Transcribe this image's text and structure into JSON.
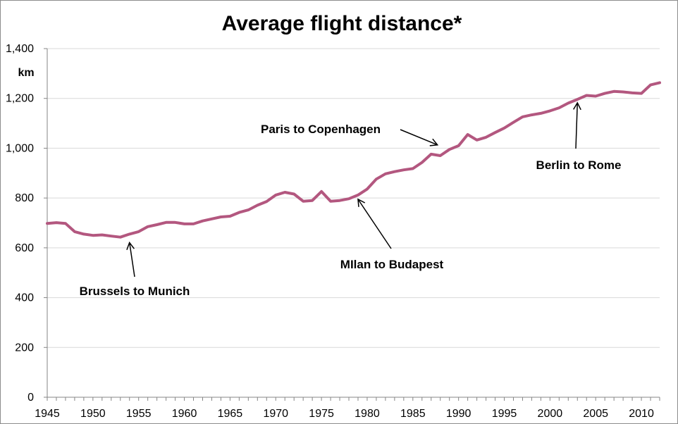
{
  "chart_data": {
    "type": "line",
    "title": "Average flight distance*",
    "ylabel": "km",
    "xlabel": "",
    "ylim": [
      0,
      1400
    ],
    "xlim": [
      1945,
      2012
    ],
    "grid": true,
    "legend": "none",
    "yticks": [
      0,
      200,
      400,
      600,
      800,
      1000,
      1200,
      1400
    ],
    "ytick_labels": [
      "0",
      "200",
      "400",
      "600",
      "800",
      "1,000",
      "1,200",
      "1,400"
    ],
    "xtick_labels": [
      "1945",
      "1950",
      "1955",
      "1960",
      "1965",
      "1970",
      "1975",
      "1980",
      "1985",
      "1990",
      "1995",
      "2000",
      "2005",
      "2010"
    ],
    "line_color": "#b3577f",
    "series": [
      {
        "x": [
          1945,
          1946,
          1947,
          1948,
          1949,
          1950,
          1951,
          1952,
          1953,
          1954,
          1955,
          1956,
          1957,
          1958,
          1959,
          1960,
          1961,
          1962,
          1963,
          1964,
          1965,
          1966,
          1967,
          1968,
          1969,
          1970,
          1971,
          1972,
          1973,
          1974,
          1975,
          1976,
          1977,
          1978,
          1979,
          1980,
          1981,
          1982,
          1983,
          1984,
          1985,
          1986,
          1987,
          1988,
          1989,
          1990,
          1991,
          1992,
          1993,
          1994,
          1995,
          1996,
          1997,
          1998,
          1999,
          2000,
          2001,
          2002,
          2003,
          2004,
          2005,
          2006,
          2007,
          2008,
          2009,
          2010,
          2011,
          2012
        ],
        "values": [
          698,
          701,
          698,
          665,
          655,
          650,
          652,
          647,
          643,
          655,
          665,
          685,
          693,
          702,
          702,
          696,
          696,
          708,
          716,
          724,
          727,
          742,
          752,
          771,
          786,
          812,
          823,
          816,
          787,
          790,
          826,
          787,
          790,
          797,
          812,
          836,
          876,
          897,
          906,
          913,
          918,
          943,
          976,
          970,
          995,
          1010,
          1055,
          1033,
          1044,
          1063,
          1081,
          1104,
          1126,
          1134,
          1140,
          1150,
          1162,
          1181,
          1196,
          1212,
          1209,
          1220,
          1228,
          1226,
          1222,
          1220,
          1254,
          1263
        ]
      }
    ],
    "annotations": [
      {
        "text": "Brussels to Munich",
        "target": [
          1954,
          655
        ]
      },
      {
        "text": "MIlan to Budapest",
        "target": [
          1979,
          812
        ]
      },
      {
        "text": "Paris to Copenhagen",
        "target": [
          1988,
          1002
        ]
      },
      {
        "text": "Berlin to Rome",
        "target": [
          2003,
          1188
        ]
      }
    ]
  }
}
